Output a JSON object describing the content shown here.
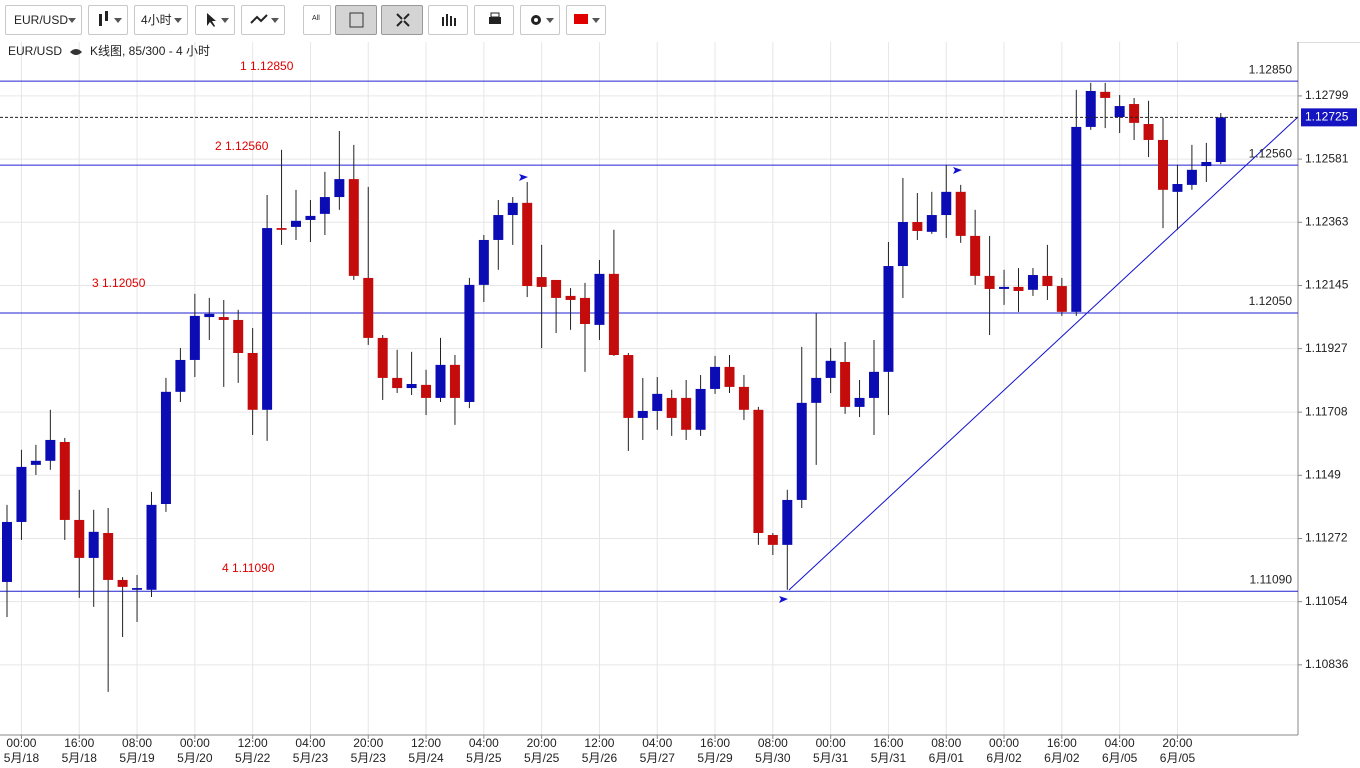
{
  "toolbar": {
    "symbol": "EUR/USD",
    "period": "4小时",
    "all": "All"
  },
  "header": {
    "symbol": "EUR/USD",
    "info": "K线图, 85/300 - 4 小时"
  },
  "chart_data": {
    "type": "candlestick",
    "up_color": "#0c0cb4",
    "down_color": "#c40c0c",
    "grid": true,
    "ylim": [
      1.10594,
      1.12985
    ],
    "yticks": [
      1.10836,
      1.11054,
      1.11272,
      1.1149,
      1.11708,
      1.11927,
      1.12145,
      1.12363,
      1.12581,
      1.12799
    ],
    "categories": [
      null,
      "00:00",
      null,
      null,
      null,
      "16:00",
      null,
      null,
      null,
      "08:00",
      null,
      null,
      null,
      "00:00",
      null,
      null,
      null,
      "12:00",
      null,
      null,
      null,
      "04:00",
      null,
      null,
      null,
      "20:00",
      null,
      null,
      null,
      "12:00",
      null,
      null,
      null,
      "04:00",
      null,
      null,
      null,
      "20:00",
      null,
      null,
      null,
      "12:00",
      null,
      null,
      null,
      "04:00",
      null,
      null,
      null,
      "16:00",
      null,
      null,
      null,
      "08:00",
      null,
      null,
      null,
      "00:00",
      null,
      null,
      null,
      "16:00",
      null,
      null,
      null,
      "08:00",
      null,
      null,
      null,
      "00:00",
      null,
      null,
      null,
      "16:00",
      null,
      null,
      null,
      "04:00",
      null,
      null,
      null,
      "20:00",
      null,
      null,
      null
    ],
    "dates": [
      null,
      "5月/18",
      null,
      null,
      null,
      "5月/18",
      null,
      null,
      null,
      "5月/19",
      null,
      null,
      null,
      "5月/20",
      null,
      null,
      null,
      "5月/22",
      null,
      null,
      null,
      "5月/23",
      null,
      null,
      null,
      "5月/23",
      null,
      null,
      null,
      "5月/24",
      null,
      null,
      null,
      "5月/25",
      null,
      null,
      null,
      "5月/25",
      null,
      null,
      null,
      "5月/26",
      null,
      null,
      null,
      "5月/27",
      null,
      null,
      null,
      "5月/29",
      null,
      null,
      null,
      "5月/30",
      null,
      null,
      null,
      "5月/31",
      null,
      null,
      null,
      "5月/31",
      null,
      null,
      null,
      "6月/01",
      null,
      null,
      null,
      "6月/02",
      null,
      null,
      null,
      "6月/02",
      null,
      null,
      null,
      "6月/05",
      null,
      null,
      null,
      "6月/05",
      null,
      null,
      null
    ],
    "open": [
      1.11122,
      1.11329,
      1.11526,
      1.1154,
      1.11605,
      1.11336,
      1.11205,
      1.11291,
      1.11129,
      1.11095,
      1.11095,
      1.11391,
      1.11778,
      1.11888,
      1.12036,
      1.12036,
      1.12026,
      1.11912,
      1.11716,
      1.12343,
      1.12347,
      1.12371,
      1.12392,
      1.1245,
      1.12512,
      1.12171,
      1.11964,
      1.11826,
      1.11791,
      1.11802,
      1.11757,
      1.11871,
      1.11743,
      1.12147,
      1.12302,
      1.12388,
      1.1243,
      1.12174,
      1.12164,
      1.12109,
      1.12102,
      1.12009,
      1.12185,
      1.11905,
      1.11688,
      1.11712,
      1.11757,
      1.11757,
      1.11647,
      1.11788,
      1.11864,
      1.11795,
      1.11716,
      1.11284,
      1.1125,
      1.11405,
      1.1174,
      1.11826,
      1.11881,
      1.11726,
      1.11757,
      1.11847,
      1.12212,
      1.12364,
      1.1233,
      1.12388,
      1.12468,
      1.12316,
      1.12178,
      1.12133,
      1.1214,
      1.1213,
      1.12178,
      1.12143,
      1.12054,
      1.12692,
      1.12813,
      1.12726,
      1.12771,
      1.12702,
      1.12647,
      1.12468,
      1.12492,
      1.12557,
      1.12571
    ],
    "high": [
      1.11388,
      1.11578,
      1.11595,
      1.11716,
      1.11619,
      1.1144,
      1.11371,
      1.11377,
      1.11139,
      1.11146,
      1.11433,
      1.11826,
      1.11929,
      1.12116,
      1.12102,
      1.12095,
      1.12061,
      1.11998,
      1.12457,
      1.12613,
      1.12475,
      1.1244,
      1.12537,
      1.12678,
      1.1263,
      1.12485,
      1.11974,
      1.11923,
      1.11916,
      1.11854,
      1.11964,
      1.11905,
      1.12171,
      1.12319,
      1.1244,
      1.1245,
      1.12502,
      1.12285,
      1.12164,
      1.12136,
      1.12154,
      1.12233,
      1.12337,
      1.11912,
      1.11826,
      1.11829,
      1.11785,
      1.11819,
      1.11836,
      1.11902,
      1.11905,
      1.11836,
      1.11726,
      1.11291,
      1.1144,
      1.11933,
      1.1205,
      1.11929,
      1.1195,
      1.11819,
      1.11957,
      1.12295,
      1.12516,
      1.12464,
      1.12468,
      1.12561,
      1.12492,
      1.12406,
      1.12316,
      1.12199,
      1.12205,
      1.12205,
      1.12285,
      1.12171,
      1.1282,
      1.12844,
      1.12844,
      1.12802,
      1.12792,
      1.12782,
      1.12723,
      1.12561,
      1.1263,
      1.12637,
      1.1274
    ],
    "low": [
      1.11001,
      1.11267,
      1.11491,
      1.11509,
      1.11267,
      1.11067,
      1.11036,
      1.10743,
      1.10932,
      1.10984,
      1.1107,
      1.11364,
      1.11743,
      1.11829,
      1.11957,
      1.11795,
      1.11809,
      1.11629,
      1.11609,
      1.12285,
      1.12302,
      1.12295,
      1.12319,
      1.12406,
      1.12164,
      1.1194,
      1.1175,
      1.11774,
      1.11767,
      1.11698,
      1.11743,
      1.11664,
      1.11722,
      1.12088,
      1.12199,
      1.12285,
      1.12105,
      1.11929,
      1.11981,
      1.11992,
      1.11847,
      1.11957,
      1.11902,
      1.11574,
      1.11612,
      1.11647,
      1.11626,
      1.11612,
      1.11626,
      1.11771,
      1.11774,
      1.11681,
      1.1125,
      1.11215,
      1.11095,
      1.11377,
      1.11526,
      1.11774,
      1.11702,
      1.11691,
      1.11629,
      1.11698,
      1.12102,
      1.12302,
      1.12323,
      1.12309,
      1.12292,
      1.12147,
      1.11974,
      1.12078,
      1.12054,
      1.12109,
      1.12095,
      1.1204,
      1.1204,
      1.12682,
      1.12688,
      1.12671,
      1.12647,
      1.12588,
      1.12343,
      1.12337,
      1.12475,
      1.12502,
      1.12564
    ],
    "close": [
      1.11329,
      1.11519,
      1.1154,
      1.11612,
      1.11336,
      1.11205,
      1.11295,
      1.11129,
      1.11105,
      1.11101,
      1.11388,
      1.11778,
      1.11888,
      1.1204,
      1.12047,
      1.12026,
      1.11912,
      1.11716,
      1.12343,
      1.12337,
      1.12368,
      1.12385,
      1.1245,
      1.12512,
      1.12178,
      1.11964,
      1.11826,
      1.11791,
      1.11805,
      1.11757,
      1.11871,
      1.11757,
      1.12147,
      1.12302,
      1.12388,
      1.1243,
      1.12143,
      1.1214,
      1.12102,
      1.12095,
      1.12012,
      1.12185,
      1.11905,
      1.11688,
      1.11712,
      1.11771,
      1.11688,
      1.11647,
      1.11788,
      1.11864,
      1.11795,
      1.11716,
      1.11291,
      1.1125,
      1.11405,
      1.1174,
      1.11826,
      1.11885,
      1.11726,
      1.11757,
      1.11847,
      1.12212,
      1.12364,
      1.12333,
      1.12388,
      1.12468,
      1.12316,
      1.12178,
      1.12133,
      1.1214,
      1.12126,
      1.12181,
      1.12143,
      1.12054,
      1.12692,
      1.12816,
      1.12792,
      1.12764,
      1.12706,
      1.12647,
      1.12475,
      1.12495,
      1.12544,
      1.12571,
      1.12725
    ],
    "current_price": 1.12725,
    "levels": [
      {
        "value": 1.1285,
        "label": "1.12850",
        "annotation": "1  1.12850"
      },
      {
        "value": 1.1256,
        "label": "1.12560",
        "annotation": "2  1.12560"
      },
      {
        "value": 1.1205,
        "label": "1.12050",
        "annotation": "3  1.12050"
      },
      {
        "value": 1.1109,
        "label": "1.11090",
        "annotation": "4  1.11090"
      }
    ]
  }
}
